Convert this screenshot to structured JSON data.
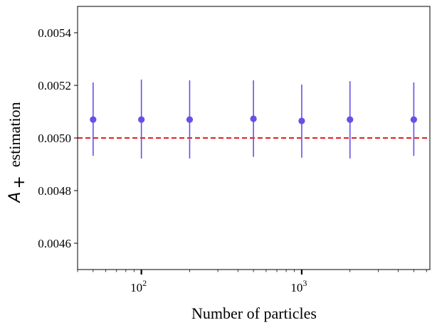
{
  "chart_data": {
    "type": "scatter",
    "xlabel": "Number of particles",
    "ylabel_symbol": "A",
    "ylabel_subscript": "+",
    "ylabel_text": "estimation",
    "xscale": "log",
    "xlim": [
      40,
      6300
    ],
    "ylim": [
      0.0045,
      0.0055
    ],
    "x_major_ticks": [
      {
        "value": 100,
        "base": "10",
        "exp": "2"
      },
      {
        "value": 1000,
        "base": "10",
        "exp": "3"
      }
    ],
    "y_ticks": [
      0.0046,
      0.0048,
      0.005,
      0.0052,
      0.0054
    ],
    "y_tick_labels": [
      "0.0046",
      "0.0048",
      "0.0050",
      "0.0052",
      "0.0054"
    ],
    "grid": false,
    "series": [
      {
        "color": "#6650e6",
        "x": [
          50,
          100,
          200,
          500,
          1000,
          2000,
          5000
        ],
        "y": [
          0.00507,
          0.00507,
          0.00507,
          0.005073,
          0.005065,
          0.00507,
          0.00507
        ],
        "err_low": [
          0.004932,
          0.004922,
          0.004922,
          0.004928,
          0.004925,
          0.004922,
          0.004932
        ],
        "err_high": [
          0.005211,
          0.005222,
          0.005219,
          0.005219,
          0.005203,
          0.005216,
          0.005211
        ]
      }
    ],
    "reference_line": {
      "y": 0.005,
      "color": "#e00000",
      "style": "dashed"
    }
  }
}
